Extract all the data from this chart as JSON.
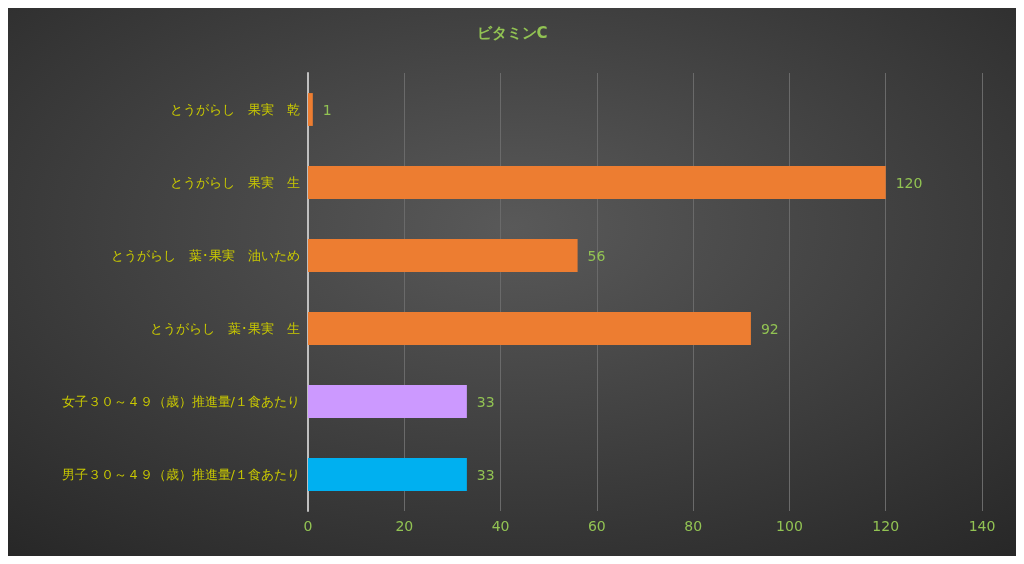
{
  "chart_data": {
    "type": "bar",
    "orientation": "horizontal",
    "title": "ビタミンC",
    "categories": [
      "とうがらし　果実　乾",
      "とうがらし　果実　生",
      "とうがらし　葉･果実　油いため",
      "とうがらし　葉･果実　生",
      "女子３０～４９（歳）推進量/１食あたり",
      "男子３０～４９（歳）推進量/１食あたり"
    ],
    "values": [
      1,
      120,
      56,
      92,
      33,
      33
    ],
    "colors": [
      "#ed7d31",
      "#ed7d31",
      "#ed7d31",
      "#ed7d31",
      "#cc99ff",
      "#00b0f0"
    ],
    "xlim": [
      0,
      140
    ],
    "xticks": [
      0,
      20,
      40,
      60,
      80,
      100,
      120,
      140
    ],
    "grid": "x",
    "data_labels": true
  }
}
